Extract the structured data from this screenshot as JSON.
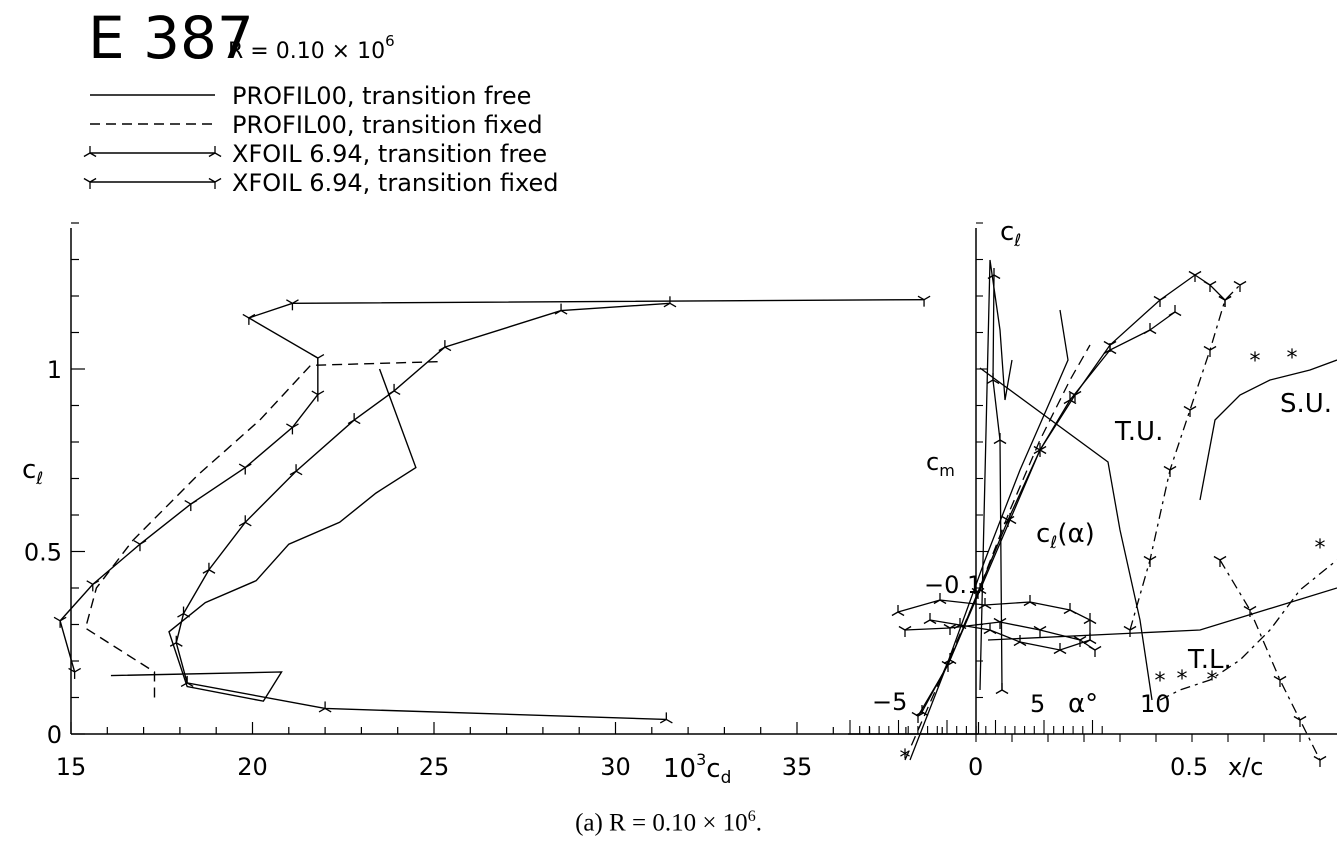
{
  "figure": {
    "airfoil": "E 387",
    "reynolds": "R = 0.10 × 10",
    "reynolds_exp": "6",
    "caption_main": "(a)  R = 0.10 × 10",
    "caption_exp": "6",
    "caption_end": "."
  },
  "legend": [
    {
      "label": "PROFIL00, transition free",
      "style": "solid"
    },
    {
      "label": "PROFIL00, transition fixed",
      "style": "dashed"
    },
    {
      "label": "XFOIL 6.94, transition free",
      "style": "solid-marker-tri-up"
    },
    {
      "label": "XFOIL 6.94, transition fixed",
      "style": "solid-marker-tri-down"
    }
  ],
  "chart_data": [
    {
      "type": "line",
      "panel": "drag-polar",
      "xlabel": "10³c_d",
      "ylabel": "c_ℓ",
      "xlim": [
        15,
        40
      ],
      "ylim": [
        0,
        1.4
      ],
      "x_ticks": [
        "15",
        "20",
        "25",
        "30",
        "35"
      ],
      "y_ticks": [
        "0",
        "0.5",
        "1"
      ],
      "xlabel_parts": {
        "base": "10",
        "sup": "3",
        "mid": "c",
        "sub": "d"
      },
      "ylabel_parts": {
        "mid": "c",
        "sub": "ℓ"
      },
      "series": [
        {
          "style": "solid",
          "points": [
            [
              16.1,
              0.16
            ],
            [
              20.8,
              0.17
            ],
            [
              20.3,
              0.09
            ],
            [
              18.2,
              0.13
            ],
            [
              17.7,
              0.28
            ],
            [
              18.7,
              0.36
            ],
            [
              20.1,
              0.42
            ],
            [
              21,
              0.52
            ],
            [
              22.4,
              0.58
            ],
            [
              23.4,
              0.66
            ],
            [
              24.5,
              0.73
            ],
            [
              23.5,
              1.0
            ]
          ]
        },
        {
          "style": "dashed",
          "points": [
            [
              17.3,
              0.1
            ],
            [
              17.3,
              0.17
            ],
            [
              15.4,
              0.29
            ],
            [
              15.7,
              0.4
            ],
            [
              16.7,
              0.53
            ],
            [
              18.5,
              0.71
            ],
            [
              20.2,
              0.86
            ],
            [
              21.6,
              1.01
            ],
            [
              25.1,
              1.02
            ]
          ]
        },
        {
          "style": "solid-marker-tri-up",
          "points": [
            [
              31.4,
              0.04
            ],
            [
              22,
              0.07
            ],
            [
              18.2,
              0.14
            ],
            [
              17.9,
              0.25
            ],
            [
              18.1,
              0.33
            ],
            [
              18.8,
              0.45
            ],
            [
              19.8,
              0.58
            ],
            [
              21.2,
              0.72
            ],
            [
              22.8,
              0.86
            ],
            [
              23.9,
              0.94
            ],
            [
              25.3,
              1.06
            ],
            [
              28.5,
              1.16
            ],
            [
              31.5,
              1.18
            ]
          ]
        },
        {
          "style": "solid-marker-tri-down",
          "points": [
            [
              15.1,
              0.17
            ],
            [
              14.7,
              0.31
            ],
            [
              15.6,
              0.41
            ],
            [
              16.9,
              0.52
            ],
            [
              18.3,
              0.63
            ],
            [
              19.8,
              0.73
            ],
            [
              21.1,
              0.84
            ],
            [
              21.8,
              0.93
            ],
            [
              21.8,
              1.03
            ],
            [
              19.9,
              1.14
            ],
            [
              21.1,
              1.18
            ],
            [
              38.5,
              1.19
            ]
          ]
        }
      ]
    },
    {
      "type": "line",
      "panel": "lift-curve-and-transition",
      "top_label_parts": {
        "mid": "c",
        "sub": "ℓ"
      },
      "cm_label_parts": {
        "mid": "c",
        "sub": "m"
      },
      "cm_value": "−0.1",
      "xlabel": "x/c",
      "x_ticks": [
        "0",
        "0.5"
      ],
      "alpha_ticks": [
        "−5",
        "5",
        "10"
      ],
      "alpha_label": "α°",
      "annotations": [
        "c_ℓ(α)",
        "T.U.",
        "S.U.",
        "T.L."
      ],
      "annotation_parts": {
        "cla_base": "c",
        "cla_sub": "ℓ",
        "cla_end": "(α)"
      },
      "markers": {
        "star": "*"
      }
    }
  ]
}
